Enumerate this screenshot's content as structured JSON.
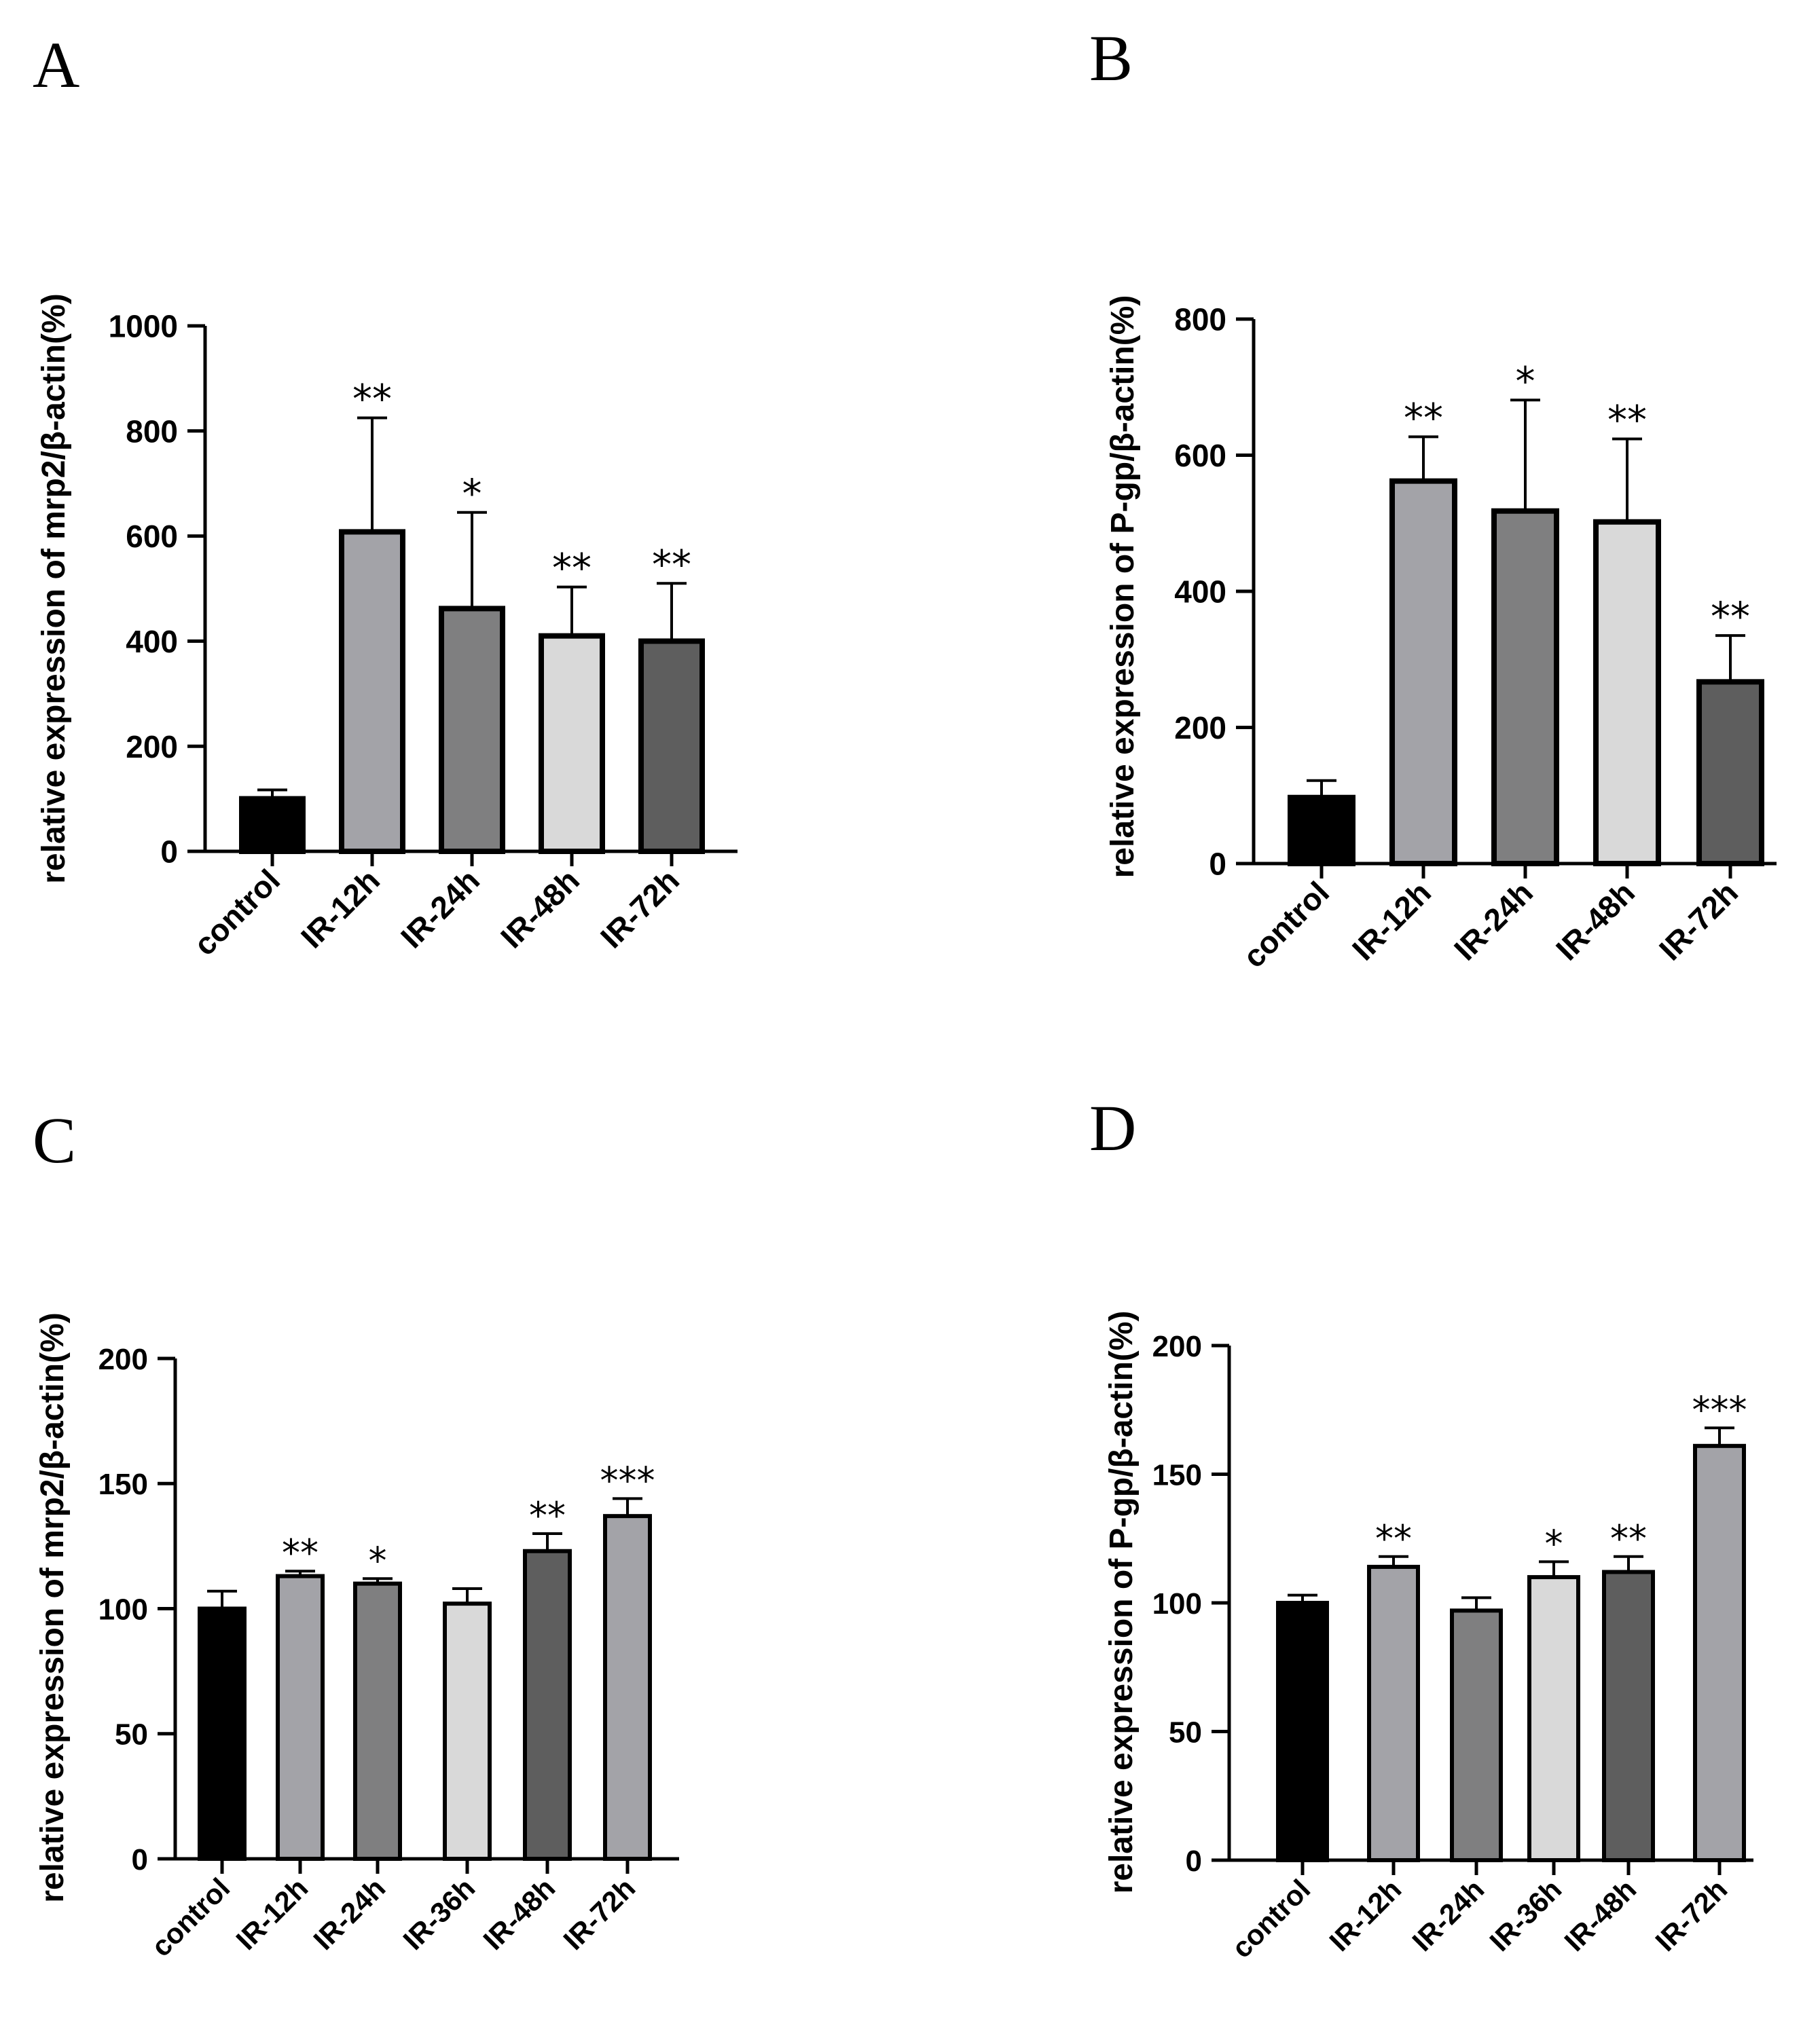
{
  "chart_data": [
    {
      "panel": "A",
      "type": "bar",
      "categories": [
        "control",
        "IR-12h",
        "IR-24h",
        "IR-48h",
        "IR-72h"
      ],
      "values": [
        100,
        608,
        462,
        410,
        400
      ],
      "errors": [
        17,
        217,
        183,
        93,
        110
      ],
      "significance": [
        "",
        "**",
        "*",
        "**",
        "**"
      ],
      "colors": [
        "#000000",
        "#a3a3a8",
        "#7f7f80",
        "#d9d9d9",
        "#5e5e5e"
      ],
      "ylabel": "relative expression of mrp2/β-actin(%)",
      "yticks": [
        0,
        200,
        400,
        600,
        800,
        1000
      ],
      "ylim": [
        0,
        1000
      ]
    },
    {
      "panel": "B",
      "type": "bar",
      "categories": [
        "control",
        "IR-12h",
        "IR-24h",
        "IR-48h",
        "IR-72h"
      ],
      "values": [
        97,
        562,
        518,
        502,
        267
      ],
      "errors": [
        25,
        65,
        163,
        122,
        68
      ],
      "significance": [
        "",
        "**",
        "*",
        "**",
        "**"
      ],
      "colors": [
        "#000000",
        "#a3a3a8",
        "#7f7f80",
        "#d9d9d9",
        "#5e5e5e"
      ],
      "ylabel": "relative expression of P-gp/β-actin(%)",
      "yticks": [
        0,
        200,
        400,
        600,
        800
      ],
      "ylim": [
        0,
        800
      ]
    },
    {
      "panel": "C",
      "type": "bar",
      "categories": [
        "control",
        "IR-12h",
        "IR-24h",
        "IR-36h",
        "IR-48h",
        "IR-72h"
      ],
      "values": [
        100,
        113,
        110,
        102,
        123,
        137
      ],
      "errors": [
        7,
        2,
        2,
        6,
        7,
        7
      ],
      "significance": [
        "",
        "**",
        "*",
        "",
        "**",
        "***"
      ],
      "colors": [
        "#000000",
        "#a3a3a8",
        "#7f7f80",
        "#d9d9d9",
        "#5e5e5e",
        "#a3a3a8"
      ],
      "ylabel": "relative expression of mrp2/β-actin(%)",
      "yticks": [
        0,
        50,
        100,
        150,
        200
      ],
      "ylim": [
        0,
        200
      ]
    },
    {
      "panel": "D",
      "type": "bar",
      "categories": [
        "control",
        "IR-12h",
        "IR-24h",
        "IR-36h",
        "IR-48h",
        "IR-72h"
      ],
      "values": [
        100,
        114,
        97,
        110,
        112,
        161
      ],
      "errors": [
        3,
        4,
        5,
        6,
        6,
        7
      ],
      "significance": [
        "",
        "**",
        "",
        "*",
        "**",
        "***"
      ],
      "colors": [
        "#000000",
        "#a3a3a8",
        "#7f7f80",
        "#d9d9d9",
        "#5e5e5e",
        "#a3a3a8"
      ],
      "ylabel": "relative expression of P-gp/β-actin(%)",
      "yticks": [
        0,
        50,
        100,
        150,
        200
      ],
      "ylim": [
        0,
        200
      ]
    }
  ],
  "panel_letters": {
    "a": "A",
    "b": "B",
    "c": "C",
    "d": "D"
  }
}
